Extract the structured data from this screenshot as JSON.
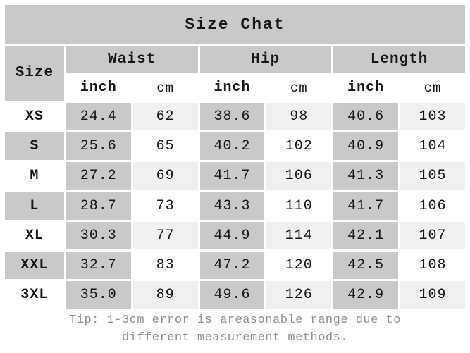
{
  "title": "Size Chat",
  "columns": {
    "size": "Size",
    "groups": [
      "Waist",
      "Hip",
      "Length"
    ],
    "units": [
      "inch",
      "cm"
    ]
  },
  "rows": [
    {
      "size": "XS",
      "waist_inch": "24.4",
      "waist_cm": "62",
      "hip_inch": "38.6",
      "hip_cm": "98",
      "length_inch": "40.6",
      "length_cm": "103"
    },
    {
      "size": "S",
      "waist_inch": "25.6",
      "waist_cm": "65",
      "hip_inch": "40.2",
      "hip_cm": "102",
      "length_inch": "40.9",
      "length_cm": "104"
    },
    {
      "size": "M",
      "waist_inch": "27.2",
      "waist_cm": "69",
      "hip_inch": "41.7",
      "hip_cm": "106",
      "length_inch": "41.3",
      "length_cm": "105"
    },
    {
      "size": "L",
      "waist_inch": "28.7",
      "waist_cm": "73",
      "hip_inch": "43.3",
      "hip_cm": "110",
      "length_inch": "41.7",
      "length_cm": "106"
    },
    {
      "size": "XL",
      "waist_inch": "30.3",
      "waist_cm": "77",
      "hip_inch": "44.9",
      "hip_cm": "114",
      "length_inch": "42.1",
      "length_cm": "107"
    },
    {
      "size": "XXL",
      "waist_inch": "32.7",
      "waist_cm": "83",
      "hip_inch": "47.2",
      "hip_cm": "120",
      "length_inch": "42.5",
      "length_cm": "108"
    },
    {
      "size": "3XL",
      "waist_inch": "35.0",
      "waist_cm": "89",
      "hip_inch": "49.6",
      "hip_cm": "126",
      "length_inch": "42.9",
      "length_cm": "109"
    }
  ],
  "footer": {
    "tip": "Tip: 1-3cm error is areasonable range due to different measurement methods."
  },
  "colors": {
    "header_gray": "#c9c9c9",
    "row_light": "#f0f0f0",
    "cell_white": "#ffffff",
    "text": "#161616",
    "footer_text": "#8f8f8f"
  }
}
